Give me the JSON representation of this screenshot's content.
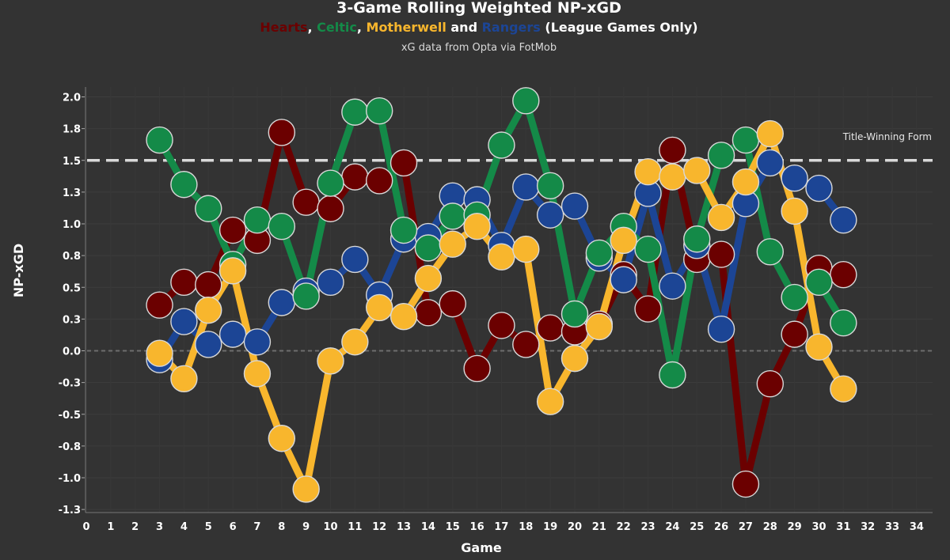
{
  "chart_data": {
    "type": "line",
    "title": "3-Game Rolling Weighted NP-xGD",
    "subtitle": {
      "parts": [
        {
          "text": "Hearts",
          "color": "#6b0000"
        },
        {
          "text": ", ",
          "color": "#ffffff"
        },
        {
          "text": "Celtic",
          "color": "#148a48"
        },
        {
          "text": ", ",
          "color": "#ffffff"
        },
        {
          "text": "Motherwell",
          "color": "#f8b62d"
        },
        {
          "text": " and ",
          "color": "#ffffff"
        },
        {
          "text": "Rangers",
          "color": "#1c4595"
        },
        {
          "text": " (League Games Only)",
          "color": "#ffffff"
        }
      ]
    },
    "source": "xG data from Opta via FotMob",
    "xlabel": "Game",
    "ylabel": "NP-xGD",
    "xlim": [
      0,
      35
    ],
    "ylim": [
      -1.25,
      2.1
    ],
    "x_ticks": [
      0,
      1,
      2,
      3,
      4,
      5,
      6,
      7,
      8,
      9,
      10,
      11,
      12,
      13,
      14,
      15,
      16,
      17,
      18,
      19,
      20,
      21,
      22,
      23,
      24,
      25,
      26,
      27,
      28,
      29,
      30,
      31,
      32,
      33,
      34
    ],
    "y_ticks": [
      {
        "value": 2.0,
        "label": "2.0"
      },
      {
        "value": 1.75,
        "label": "1.8"
      },
      {
        "value": 1.5,
        "label": "1.5"
      },
      {
        "value": 1.25,
        "label": "1.3"
      },
      {
        "value": 1.0,
        "label": "1.0"
      },
      {
        "value": 0.75,
        "label": "0.8"
      },
      {
        "value": 0.5,
        "label": "0.5"
      },
      {
        "value": 0.25,
        "label": "0.3"
      },
      {
        "value": 0.0,
        "label": "0.0"
      },
      {
        "value": -0.25,
        "label": "-0.3"
      },
      {
        "value": -0.5,
        "label": "-0.5"
      },
      {
        "value": -0.75,
        "label": "-0.8"
      },
      {
        "value": -1.0,
        "label": "-1.0"
      },
      {
        "value": -1.25,
        "label": "-1.3"
      }
    ],
    "reference_line": {
      "value": 1.5,
      "label": "Title-Winning Form"
    },
    "zero_line": 0.0,
    "grid": true,
    "series": [
      {
        "name": "Hearts",
        "color": "#6b0000",
        "x": [
          3,
          4,
          5,
          6,
          7,
          8,
          9,
          10,
          11,
          12,
          13,
          14,
          15,
          16,
          17,
          18,
          19,
          20,
          21,
          22,
          23,
          24,
          25,
          26,
          27,
          28,
          29,
          30,
          31
        ],
        "values": [
          0.36,
          0.54,
          0.52,
          0.95,
          0.87,
          1.72,
          1.17,
          1.12,
          1.37,
          1.34,
          1.48,
          0.3,
          0.37,
          -0.14,
          0.2,
          0.05,
          0.18,
          0.15,
          0.21,
          0.6,
          0.33,
          1.58,
          0.72,
          0.76,
          -1.05,
          -0.26,
          0.13,
          0.65,
          0.6
        ]
      },
      {
        "name": "Rangers",
        "color": "#1c4595",
        "x": [
          3,
          4,
          5,
          6,
          7,
          8,
          9,
          10,
          11,
          12,
          13,
          14,
          15,
          16,
          17,
          18,
          19,
          20,
          21,
          22,
          23,
          24,
          25,
          26,
          27,
          28,
          29,
          30,
          31
        ],
        "values": [
          -0.07,
          0.23,
          0.05,
          0.13,
          0.07,
          0.38,
          0.47,
          0.54,
          0.72,
          0.44,
          0.88,
          0.9,
          1.22,
          1.19,
          0.83,
          1.29,
          1.07,
          1.14,
          0.73,
          0.56,
          1.24,
          0.51,
          0.83,
          0.17,
          1.16,
          1.48,
          1.36,
          1.28,
          1.03
        ]
      },
      {
        "name": "Celtic",
        "color": "#148a48",
        "x": [
          3,
          4,
          5,
          6,
          7,
          8,
          9,
          10,
          11,
          12,
          13,
          14,
          15,
          16,
          17,
          18,
          19,
          20,
          21,
          22,
          23,
          24,
          25,
          26,
          27,
          28,
          29,
          30,
          31
        ],
        "values": [
          1.66,
          1.31,
          1.12,
          0.68,
          1.03,
          0.98,
          0.43,
          1.32,
          1.88,
          1.89,
          0.95,
          0.81,
          1.06,
          1.07,
          1.62,
          1.97,
          1.3,
          0.29,
          0.77,
          0.98,
          0.8,
          -0.19,
          0.88,
          1.54,
          1.66,
          0.78,
          0.42,
          0.54,
          0.22
        ]
      },
      {
        "name": "Motherwell",
        "color": "#f8b62d",
        "x": [
          3,
          4,
          5,
          6,
          7,
          8,
          9,
          10,
          11,
          12,
          13,
          14,
          15,
          16,
          17,
          18,
          19,
          20,
          21,
          22,
          23,
          24,
          25,
          26,
          27,
          28,
          29,
          30,
          31
        ],
        "values": [
          -0.02,
          -0.22,
          0.32,
          0.63,
          -0.18,
          -0.69,
          -1.09,
          -0.08,
          0.07,
          0.34,
          0.27,
          0.57,
          0.84,
          0.98,
          0.74,
          0.8,
          -0.4,
          -0.06,
          0.19,
          0.87,
          1.41,
          1.37,
          1.42,
          1.05,
          1.33,
          1.71,
          1.1,
          0.03,
          -0.3
        ]
      }
    ]
  }
}
